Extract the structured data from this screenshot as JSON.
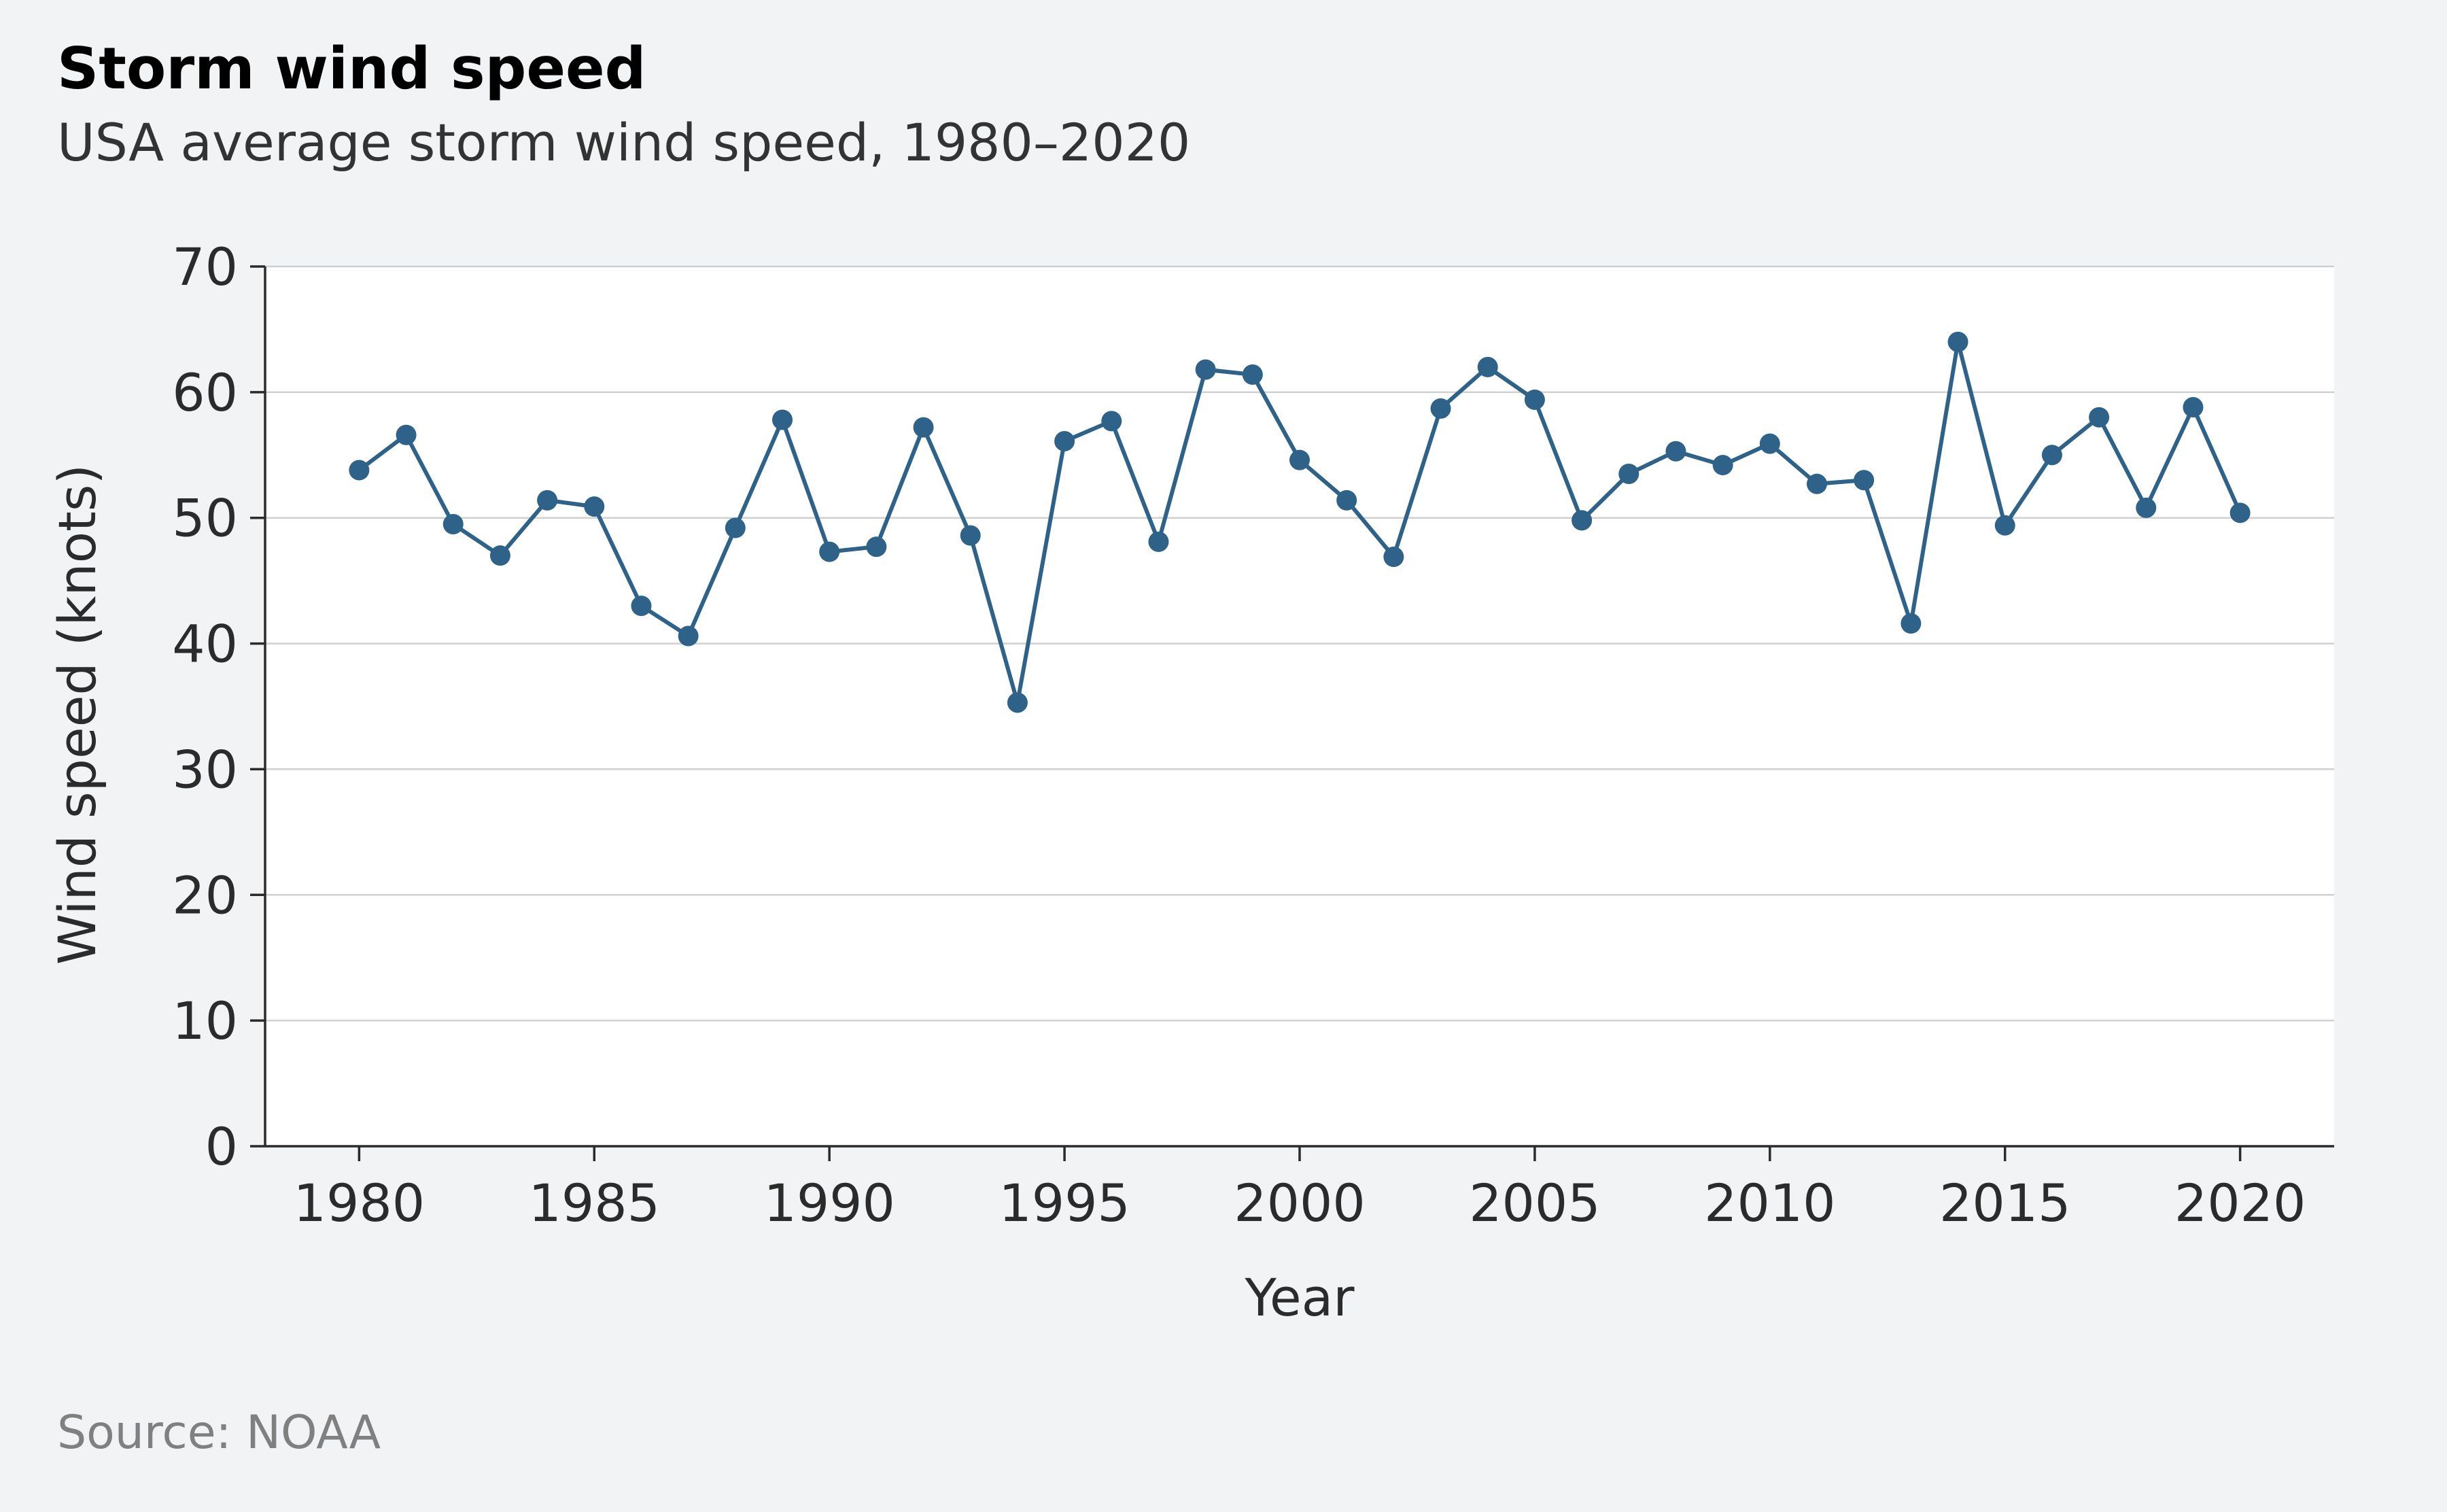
{
  "title": "Storm wind speed",
  "subtitle": "USA average storm wind speed, 1980–2020",
  "source": "Source: NOAA",
  "colors": {
    "background": "#f2f3f5",
    "plot_background": "#ffffff",
    "series": "#2e6289",
    "grid": "#d0d0d0",
    "axis": "#2b2b2b"
  },
  "chart_data": {
    "type": "line",
    "title": "Storm wind speed",
    "subtitle": "USA average storm wind speed, 1980–2020",
    "xlabel": "Year",
    "ylabel": "Wind speed (knots)",
    "xlim": [
      1978,
      2022
    ],
    "ylim": [
      0,
      70
    ],
    "x_ticks": [
      1980,
      1985,
      1990,
      1995,
      2000,
      2005,
      2010,
      2015,
      2020
    ],
    "y_ticks": [
      0,
      10,
      20,
      30,
      40,
      50,
      60,
      70
    ],
    "grid": "horizontal",
    "markers": true,
    "x": [
      1980,
      1981,
      1982,
      1983,
      1984,
      1985,
      1986,
      1987,
      1988,
      1989,
      1990,
      1991,
      1992,
      1993,
      1994,
      1995,
      1996,
      1997,
      1998,
      1999,
      2000,
      2001,
      2002,
      2003,
      2004,
      2005,
      2006,
      2007,
      2008,
      2009,
      2010,
      2011,
      2012,
      2013,
      2014,
      2015,
      2016,
      2017,
      2018,
      2019,
      2020
    ],
    "y": [
      53.8,
      56.6,
      49.5,
      47.0,
      51.4,
      50.9,
      43.0,
      40.6,
      49.2,
      57.8,
      47.3,
      47.7,
      57.2,
      48.6,
      35.3,
      56.1,
      57.7,
      48.1,
      61.8,
      61.4,
      54.6,
      51.4,
      46.9,
      58.7,
      62.0,
      59.4,
      49.8,
      53.5,
      55.3,
      54.2,
      55.9,
      52.7,
      53.0,
      41.6,
      64.0,
      49.4,
      55.0,
      58.0,
      50.8,
      58.8,
      50.4
    ]
  }
}
